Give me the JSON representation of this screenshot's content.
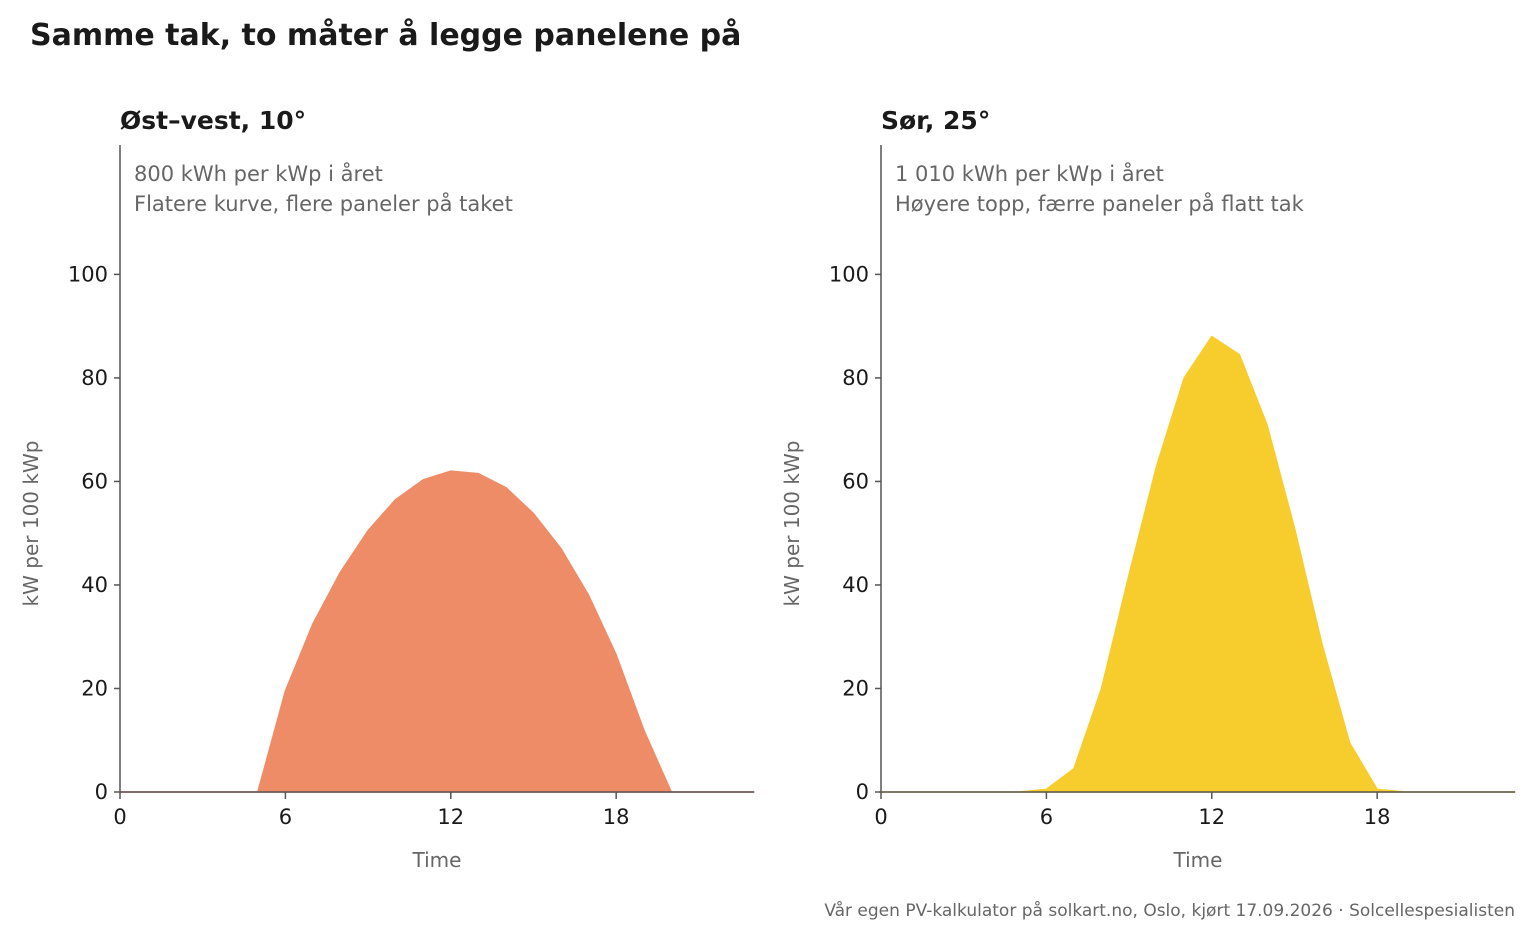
{
  "title": "Samme tak, to måter å legge panelene på",
  "source": "Vår egen PV-kalkulator på solkart.no, Oslo, kjørt 17.09.2026 · Solcellespesialisten",
  "chart_data": [
    {
      "type": "area",
      "title": "Øst–vest, 10°",
      "annotations": [
        "800 kWh per kWp i året",
        "Flatere kurve, flere paneler på taket"
      ],
      "xlabel": "Time",
      "ylabel": "kW per 100 kWp",
      "xlim": [
        0,
        23
      ],
      "ylim": [
        0,
        125
      ],
      "x_ticks": [
        0,
        6,
        12,
        18
      ],
      "y_ticks": [
        0,
        20,
        40,
        60,
        80,
        100
      ],
      "color": "#ee8c68",
      "x": [
        0,
        1,
        2,
        3,
        4,
        5,
        6,
        7,
        8,
        9,
        10,
        11,
        12,
        13,
        14,
        15,
        16,
        17,
        18,
        19,
        20,
        21,
        22,
        23
      ],
      "values": [
        0,
        0,
        0,
        0,
        0,
        0,
        19.5,
        32.5,
        42.5,
        50.5,
        56.5,
        60.3,
        62,
        61.5,
        58.8,
        53.8,
        47,
        38,
        26.5,
        12,
        0,
        0,
        0,
        0
      ],
      "grid": false
    },
    {
      "type": "area",
      "title": "Sør, 25°",
      "annotations": [
        "1 010 kWh per kWp i året",
        "Høyere topp, færre paneler på flatt tak"
      ],
      "xlabel": "Time",
      "ylabel": "kW per 100 kWp",
      "xlim": [
        0,
        23
      ],
      "ylim": [
        0,
        125
      ],
      "x_ticks": [
        0,
        6,
        12,
        18
      ],
      "y_ticks": [
        0,
        20,
        40,
        60,
        80,
        100
      ],
      "color": "#f6cd2c",
      "x": [
        0,
        1,
        2,
        3,
        4,
        5,
        6,
        7,
        8,
        9,
        10,
        11,
        12,
        13,
        14,
        15,
        16,
        17,
        18,
        19,
        20,
        21,
        22,
        23
      ],
      "values": [
        0,
        0,
        0,
        0,
        0,
        0,
        0.5,
        4.5,
        20,
        42,
        63,
        80,
        88,
        84.5,
        71,
        51,
        28.5,
        9.5,
        0.5,
        0,
        0,
        0,
        0,
        0
      ],
      "grid": false
    }
  ]
}
